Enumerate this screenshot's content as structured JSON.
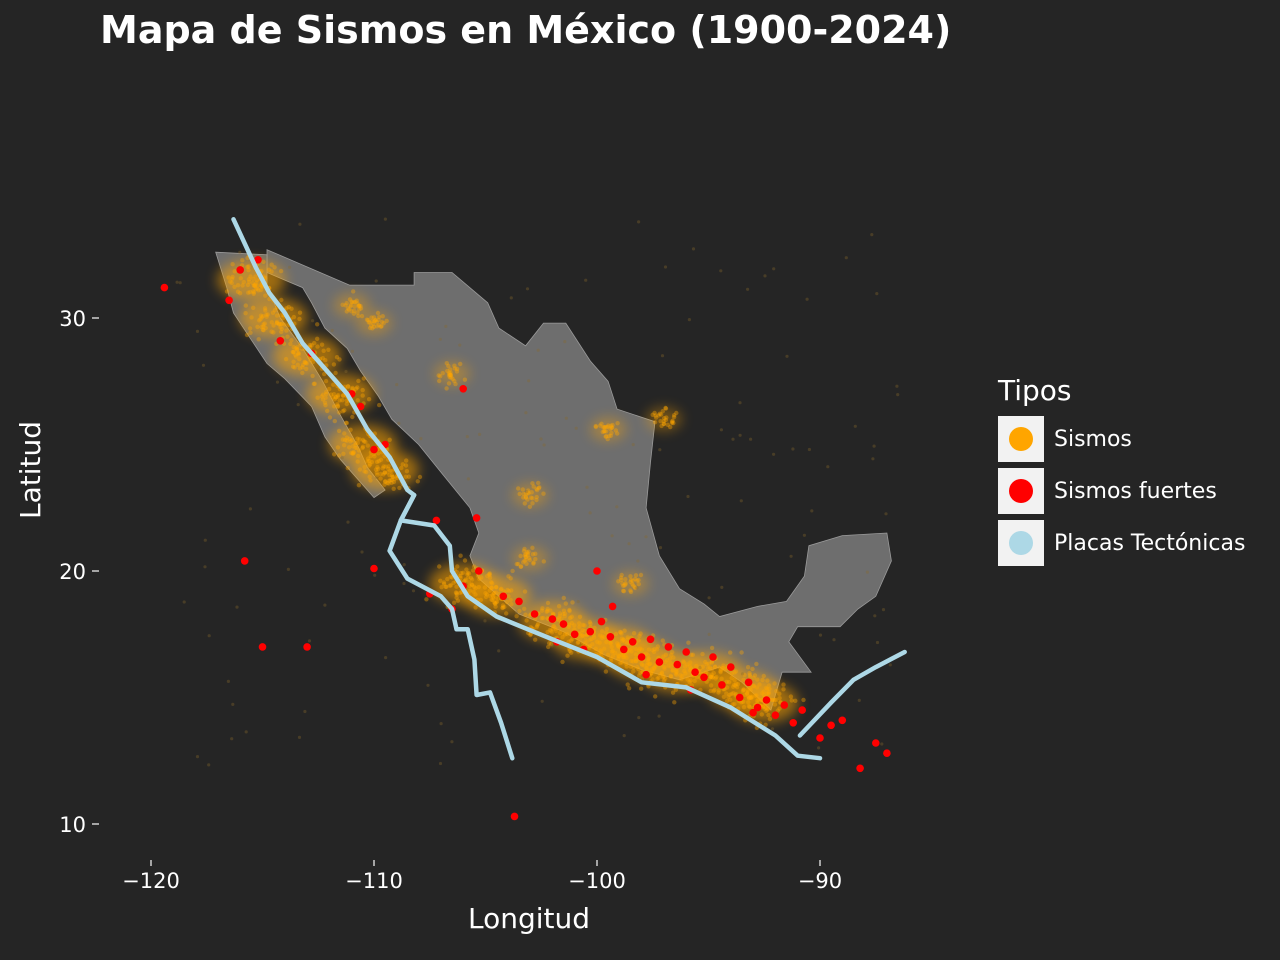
{
  "chart_data": {
    "type": "scatter",
    "title": "Mapa de Sismos en México (1900-2024)",
    "xlabel": "Longitud",
    "ylabel": "Latitud",
    "xlim": [
      -122.5,
      -84.5
    ],
    "ylim": [
      8.5,
      38.5
    ],
    "xticks": [
      -120,
      -110,
      -100,
      -90
    ],
    "yticks": [
      10,
      20,
      30
    ],
    "xtick_labels": [
      "−120",
      "−110",
      "−100",
      "−90"
    ],
    "ytick_labels": [
      "10",
      "20",
      "30"
    ],
    "grid": false,
    "legend_title": "Tipos",
    "legend_position": "right",
    "background_color": "#252525",
    "land_color": "#6e6e6e",
    "series": [
      {
        "name": "Sismos",
        "color": "#FFA500",
        "kind": "dense point cloud along Pacific coast and Baja California",
        "cluster_centers": [
          [
            -115.5,
            31.5
          ],
          [
            -114.5,
            30.0
          ],
          [
            -113.0,
            28.5
          ],
          [
            -111.5,
            27.0
          ],
          [
            -110.5,
            25.0
          ],
          [
            -109.5,
            24.0
          ],
          [
            -106.0,
            19.5
          ],
          [
            -104.5,
            19.0
          ],
          [
            -102.0,
            18.0
          ],
          [
            -100.5,
            17.3
          ],
          [
            -99.0,
            17.0
          ],
          [
            -98.0,
            16.5
          ],
          [
            -96.5,
            16.0
          ],
          [
            -95.0,
            16.0
          ],
          [
            -93.5,
            15.3
          ],
          [
            -92.5,
            14.8
          ],
          [
            -98.5,
            19.5
          ],
          [
            -103.0,
            20.5
          ],
          [
            -97.0,
            26.0
          ],
          [
            -106.5,
            27.8
          ],
          [
            -111.0,
            30.5
          ],
          [
            -110.0,
            29.8
          ],
          [
            -99.5,
            25.6
          ],
          [
            -103.0,
            23.0
          ]
        ]
      },
      {
        "name": "Sismos fuertes",
        "color": "#FF0000",
        "points": [
          [
            -119.4,
            31.2
          ],
          [
            -116.5,
            30.7
          ],
          [
            -116.0,
            31.9
          ],
          [
            -115.2,
            32.3
          ],
          [
            -114.2,
            29.1
          ],
          [
            -112.8,
            28.6
          ],
          [
            -111.0,
            27.0
          ],
          [
            -110.6,
            26.5
          ],
          [
            -109.5,
            25.0
          ],
          [
            -110.0,
            24.8
          ],
          [
            -106.0,
            27.2
          ],
          [
            -107.2,
            22.0
          ],
          [
            -105.4,
            22.1
          ],
          [
            -110.0,
            20.1
          ],
          [
            -115.8,
            20.4
          ],
          [
            -115.0,
            17.0
          ],
          [
            -113.0,
            17.0
          ],
          [
            -107.5,
            19.1
          ],
          [
            -106.5,
            18.5
          ],
          [
            -106.0,
            19.4
          ],
          [
            -105.3,
            20.0
          ],
          [
            -104.2,
            19.0
          ],
          [
            -103.5,
            18.8
          ],
          [
            -102.8,
            18.3
          ],
          [
            -102.0,
            18.1
          ],
          [
            -101.5,
            17.9
          ],
          [
            -101.0,
            17.5
          ],
          [
            -100.3,
            17.6
          ],
          [
            -100.0,
            20.0
          ],
          [
            -99.8,
            18.0
          ],
          [
            -99.4,
            17.4
          ],
          [
            -98.8,
            16.9
          ],
          [
            -98.4,
            17.2
          ],
          [
            -98.0,
            16.6
          ],
          [
            -97.6,
            17.3
          ],
          [
            -97.2,
            16.4
          ],
          [
            -96.8,
            17.0
          ],
          [
            -96.4,
            16.3
          ],
          [
            -96.0,
            16.8
          ],
          [
            -95.6,
            16.0
          ],
          [
            -95.2,
            15.8
          ],
          [
            -94.8,
            16.6
          ],
          [
            -94.4,
            15.5
          ],
          [
            -94.0,
            16.2
          ],
          [
            -93.6,
            15.0
          ],
          [
            -93.2,
            15.6
          ],
          [
            -92.8,
            14.6
          ],
          [
            -92.4,
            14.9
          ],
          [
            -92.0,
            14.3
          ],
          [
            -91.6,
            14.7
          ],
          [
            -91.2,
            14.0
          ],
          [
            -90.8,
            14.5
          ],
          [
            -90.0,
            13.4
          ],
          [
            -89.5,
            13.9
          ],
          [
            -89.0,
            14.1
          ],
          [
            -88.2,
            12.2
          ],
          [
            -87.5,
            13.2
          ],
          [
            -87.0,
            12.8
          ],
          [
            -103.7,
            10.3
          ],
          [
            -99.3,
            18.6
          ],
          [
            -101.8,
            17.2
          ],
          [
            -100.6,
            16.9
          ],
          [
            -97.8,
            15.9
          ],
          [
            -95.8,
            15.3
          ],
          [
            -93.0,
            14.4
          ]
        ]
      },
      {
        "name": "Placas Tectónicas",
        "color": "#ADD8E6",
        "lines": [
          [
            [
              -116.3,
              33.9
            ],
            [
              -115.3,
              32.0
            ],
            [
              -114.7,
              31.0
            ],
            [
              -114.0,
              30.2
            ],
            [
              -113.2,
              29.0
            ],
            [
              -112.2,
              28.0
            ],
            [
              -111.2,
              27.0
            ],
            [
              -110.3,
              25.6
            ],
            [
              -109.3,
              24.5
            ],
            [
              -108.5,
              23.2
            ],
            [
              -108.2,
              23.0
            ],
            [
              -108.8,
              22.0
            ],
            [
              -107.3,
              21.8
            ],
            [
              -106.6,
              21.0
            ],
            [
              -106.5,
              20.0
            ],
            [
              -105.8,
              19.0
            ],
            [
              -104.5,
              18.2
            ],
            [
              -102.0,
              17.3
            ],
            [
              -100.0,
              16.6
            ],
            [
              -98.0,
              15.6
            ],
            [
              -96.0,
              15.4
            ],
            [
              -94.0,
              14.6
            ],
            [
              -92.0,
              13.5
            ],
            [
              -91.0,
              12.7
            ],
            [
              -90.0,
              12.6
            ]
          ],
          [
            [
              -108.2,
              23.0
            ],
            [
              -108.8,
              22.0
            ],
            [
              -109.3,
              20.8
            ],
            [
              -108.5,
              19.7
            ],
            [
              -107.0,
              19.0
            ],
            [
              -106.5,
              18.5
            ],
            [
              -106.3,
              17.7
            ],
            [
              -105.8,
              17.7
            ],
            [
              -105.5,
              16.5
            ],
            [
              -105.4,
              15.1
            ],
            [
              -104.8,
              15.2
            ],
            [
              -104.3,
              14.0
            ],
            [
              -103.8,
              12.6
            ]
          ],
          [
            [
              -90.9,
              13.5
            ],
            [
              -89.5,
              14.8
            ],
            [
              -88.5,
              15.7
            ],
            [
              -87.5,
              16.2
            ],
            [
              -86.2,
              16.8
            ]
          ]
        ]
      }
    ]
  }
}
